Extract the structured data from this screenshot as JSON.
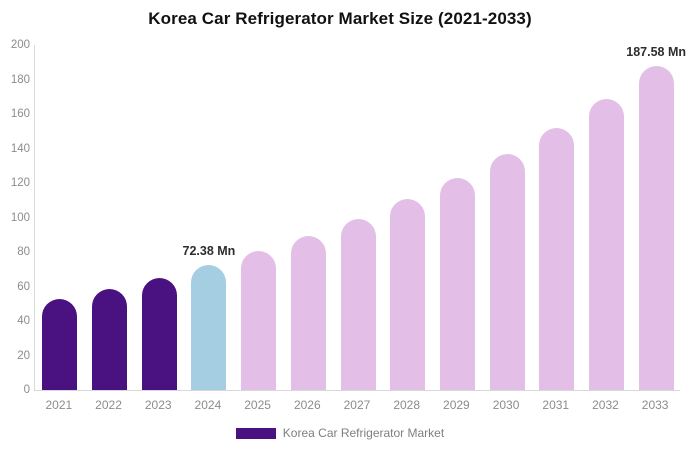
{
  "title": "Korea Car Refrigerator Market Size (2021-2033)",
  "legend": {
    "label": "Korea Car Refrigerator Market",
    "swatch_color": "#4a1181"
  },
  "colors": {
    "historical_bar": "#4a1181",
    "base_year_bar": "#a5cee3",
    "forecast_bar": "#e3bfe8",
    "axis_line": "#d9d9d9",
    "tick_text": "#8c8c8c",
    "value_label_text": "#2d2d2d",
    "title_text": "#111111"
  },
  "chart_data": {
    "type": "bar",
    "title": "Korea Car Refrigerator Market Size (2021-2033)",
    "xlabel": "",
    "ylabel": "",
    "unit": "Mn",
    "categories": [
      "2021",
      "2022",
      "2023",
      "2024",
      "2025",
      "2026",
      "2027",
      "2028",
      "2029",
      "2030",
      "2031",
      "2032",
      "2033"
    ],
    "values": [
      52.7,
      58.6,
      65.1,
      72.38,
      80.5,
      89.4,
      99.4,
      110.5,
      122.9,
      136.6,
      151.8,
      168.7,
      187.58
    ],
    "bar_colors": [
      "#4a1181",
      "#4a1181",
      "#4a1181",
      "#a5cee3",
      "#e3bfe8",
      "#e3bfe8",
      "#e3bfe8",
      "#e3bfe8",
      "#e3bfe8",
      "#e3bfe8",
      "#e3bfe8",
      "#e3bfe8",
      "#e3bfe8"
    ],
    "value_labels": {
      "2024": "72.38 Mn",
      "2033": "187.58 Mn"
    },
    "ylim": [
      0,
      200
    ],
    "yticks": [
      0,
      20,
      40,
      60,
      80,
      100,
      120,
      140,
      160,
      180,
      200
    ],
    "grid": false,
    "legend_position": "bottom",
    "series": [
      {
        "name": "Korea Car Refrigerator Market",
        "values": [
          52.7,
          58.6,
          65.1,
          72.38,
          80.5,
          89.4,
          99.4,
          110.5,
          122.9,
          136.6,
          151.8,
          168.7,
          187.58
        ]
      }
    ]
  }
}
